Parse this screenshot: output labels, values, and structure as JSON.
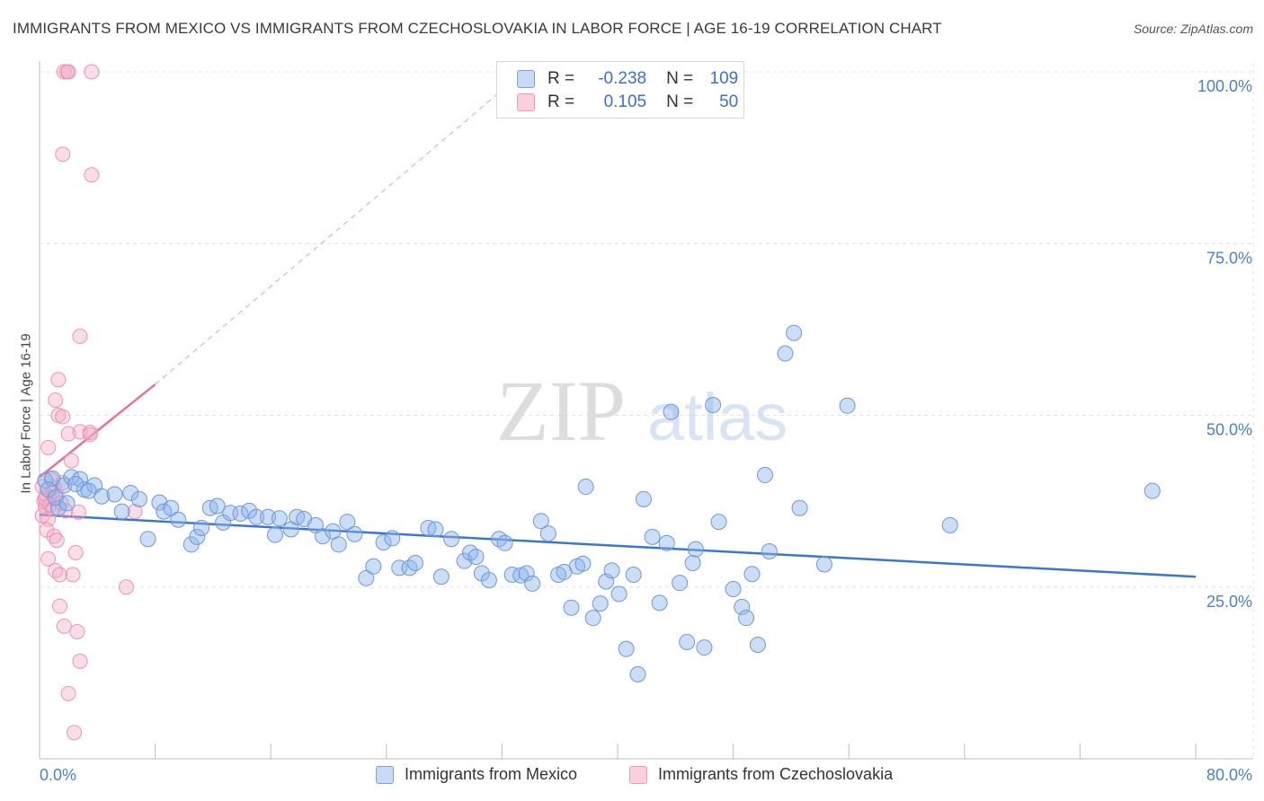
{
  "title": "IMMIGRANTS FROM MEXICO VS IMMIGRANTS FROM CZECHOSLOVAKIA IN LABOR FORCE | AGE 16-19 CORRELATION CHART",
  "source": "Source: ZipAtlas.com",
  "watermark": {
    "zip": "ZIP",
    "atlas": "atlas"
  },
  "legend": {
    "rows": [
      {
        "r_label": "R =",
        "r_value": "-0.238",
        "n_label": "N =",
        "n_value": "109",
        "color": "#8fb4ea"
      },
      {
        "r_label": "R =",
        "r_value": "0.105",
        "n_label": "N =",
        "n_value": "50",
        "color": "#f2a7c0"
      }
    ]
  },
  "bottom_legend": [
    "Immigrants from Mexico",
    "Immigrants from Czechoslovakia"
  ],
  "chart_data": {
    "type": "scatter",
    "title": "IMMIGRANTS FROM MEXICO VS IMMIGRANTS FROM CZECHOSLOVAKIA IN LABOR FORCE | AGE 16-19 CORRELATION CHART",
    "xlabel": "",
    "ylabel": "In Labor Force | Age 16-19",
    "xlim": [
      0,
      80
    ],
    "ylim": [
      0,
      100
    ],
    "x_tick_labels": [
      "0.0%",
      "80.0%"
    ],
    "y_tick_labels": [
      "25.0%",
      "50.0%",
      "75.0%",
      "100.0%"
    ],
    "y_ticks": [
      25,
      50,
      75,
      100
    ],
    "colors": {
      "mexico": "#8fb4ea",
      "mexico_line": "#3b76d0",
      "czech": "#f2a7c0",
      "czech_line": "#e8719a",
      "axis_text": "#4a7fd4"
    },
    "series": [
      {
        "name": "Immigrants from Mexico",
        "trend": {
          "x0": 0,
          "y0": 35.5,
          "x1": 80,
          "y1": 26.5
        },
        "points": [
          [
            0.4,
            40.5
          ],
          [
            0.9,
            40.8
          ],
          [
            1.3,
            36.5
          ],
          [
            1.7,
            39.8
          ],
          [
            2.2,
            41.0
          ],
          [
            2.8,
            40.7
          ],
          [
            3.1,
            39.2
          ],
          [
            3.8,
            39.8
          ],
          [
            4.3,
            38.2
          ],
          [
            5.2,
            38.5
          ],
          [
            5.7,
            36.0
          ],
          [
            6.3,
            38.7
          ],
          [
            6.9,
            37.8
          ],
          [
            7.5,
            32.0
          ],
          [
            8.3,
            37.3
          ],
          [
            8.6,
            36.0
          ],
          [
            9.1,
            36.5
          ],
          [
            9.6,
            34.8
          ],
          [
            10.5,
            31.2
          ],
          [
            10.9,
            32.3
          ],
          [
            11.2,
            33.6
          ],
          [
            11.8,
            36.5
          ],
          [
            12.3,
            36.8
          ],
          [
            12.7,
            34.4
          ],
          [
            13.2,
            35.8
          ],
          [
            13.9,
            35.7
          ],
          [
            14.5,
            36.1
          ],
          [
            15.0,
            35.2
          ],
          [
            15.8,
            35.2
          ],
          [
            16.3,
            32.6
          ],
          [
            16.6,
            35.0
          ],
          [
            17.4,
            33.4
          ],
          [
            17.8,
            35.2
          ],
          [
            18.3,
            34.9
          ],
          [
            19.1,
            34.0
          ],
          [
            19.6,
            32.4
          ],
          [
            20.3,
            33.1
          ],
          [
            20.7,
            31.2
          ],
          [
            21.3,
            34.5
          ],
          [
            21.8,
            32.7
          ],
          [
            22.6,
            26.3
          ],
          [
            23.1,
            28.0
          ],
          [
            23.8,
            31.5
          ],
          [
            24.4,
            32.1
          ],
          [
            24.9,
            27.8
          ],
          [
            25.6,
            27.8
          ],
          [
            26.0,
            28.5
          ],
          [
            26.9,
            33.6
          ],
          [
            27.4,
            33.4
          ],
          [
            27.8,
            26.5
          ],
          [
            28.5,
            32.0
          ],
          [
            29.4,
            28.8
          ],
          [
            29.8,
            30.0
          ],
          [
            30.2,
            29.4
          ],
          [
            30.6,
            27.0
          ],
          [
            31.1,
            26.0
          ],
          [
            31.8,
            32.0
          ],
          [
            32.2,
            31.4
          ],
          [
            32.7,
            26.8
          ],
          [
            33.3,
            26.7
          ],
          [
            33.7,
            27.0
          ],
          [
            34.1,
            25.5
          ],
          [
            34.7,
            34.6
          ],
          [
            35.2,
            32.8
          ],
          [
            35.9,
            26.8
          ],
          [
            36.3,
            27.2
          ],
          [
            36.8,
            22.0
          ],
          [
            37.2,
            28.0
          ],
          [
            37.6,
            28.4
          ],
          [
            37.8,
            39.6
          ],
          [
            38.3,
            20.5
          ],
          [
            38.8,
            22.6
          ],
          [
            39.2,
            25.8
          ],
          [
            39.6,
            27.4
          ],
          [
            40.1,
            24.0
          ],
          [
            40.6,
            16.0
          ],
          [
            41.1,
            26.8
          ],
          [
            41.4,
            12.3
          ],
          [
            41.8,
            37.8
          ],
          [
            42.4,
            32.3
          ],
          [
            42.9,
            22.7
          ],
          [
            43.4,
            31.4
          ],
          [
            43.7,
            50.5
          ],
          [
            44.3,
            25.6
          ],
          [
            44.8,
            17.0
          ],
          [
            45.2,
            28.5
          ],
          [
            45.4,
            30.5
          ],
          [
            46.0,
            16.2
          ],
          [
            46.6,
            51.5
          ],
          [
            47.0,
            34.5
          ],
          [
            48.0,
            24.7
          ],
          [
            48.6,
            22.1
          ],
          [
            48.9,
            20.5
          ],
          [
            49.3,
            26.9
          ],
          [
            49.7,
            16.6
          ],
          [
            50.2,
            41.3
          ],
          [
            50.5,
            30.2
          ],
          [
            51.6,
            59.0
          ],
          [
            52.2,
            62.0
          ],
          [
            52.6,
            36.5
          ],
          [
            54.3,
            28.3
          ],
          [
            55.9,
            51.4
          ],
          [
            63.0,
            34.0
          ],
          [
            77.0,
            39.0
          ],
          [
            0.6,
            39.2
          ],
          [
            1.1,
            38.0
          ],
          [
            1.9,
            37.2
          ],
          [
            2.5,
            40.0
          ],
          [
            3.4,
            39.0
          ]
        ]
      },
      {
        "name": "Immigrants from Czechoslovakia",
        "trend": {
          "x0": 0,
          "y0": 41.0,
          "x1": 8,
          "y1": 54.5,
          "dashed_to": [
            33.5,
            100
          ]
        },
        "points": [
          [
            1.7,
            100
          ],
          [
            2.0,
            100
          ],
          [
            1.9,
            100
          ],
          [
            3.6,
            100
          ],
          [
            1.6,
            88
          ],
          [
            3.6,
            85
          ],
          [
            2.8,
            61.5
          ],
          [
            1.3,
            55.2
          ],
          [
            1.1,
            52.2
          ],
          [
            1.3,
            50.0
          ],
          [
            1.6,
            49.8
          ],
          [
            2.0,
            47.3
          ],
          [
            2.8,
            47.6
          ],
          [
            3.5,
            47.5
          ],
          [
            3.5,
            47.2
          ],
          [
            0.6,
            45.3
          ],
          [
            2.2,
            43.4
          ],
          [
            0.8,
            40.7
          ],
          [
            1.0,
            39.5
          ],
          [
            0.5,
            38.3
          ],
          [
            1.2,
            38.3
          ],
          [
            0.3,
            37.6
          ],
          [
            0.7,
            37.0
          ],
          [
            1.5,
            37.2
          ],
          [
            0.4,
            36.7
          ],
          [
            0.9,
            36.3
          ],
          [
            2.7,
            35.9
          ],
          [
            0.2,
            35.4
          ],
          [
            0.6,
            34.9
          ],
          [
            0.5,
            33.3
          ],
          [
            1.0,
            32.4
          ],
          [
            1.2,
            31.8
          ],
          [
            2.5,
            30.0
          ],
          [
            0.6,
            29.1
          ],
          [
            1.1,
            27.4
          ],
          [
            1.4,
            26.8
          ],
          [
            2.3,
            26.8
          ],
          [
            6.0,
            25.0
          ],
          [
            1.4,
            22.2
          ],
          [
            1.7,
            19.3
          ],
          [
            2.6,
            18.5
          ],
          [
            2.8,
            14.2
          ],
          [
            2.0,
            9.5
          ],
          [
            2.4,
            3.8
          ],
          [
            6.6,
            36.0
          ],
          [
            0.4,
            37.9
          ],
          [
            0.9,
            38.9
          ],
          [
            1.6,
            40.2
          ],
          [
            0.2,
            39.6
          ],
          [
            1.8,
            36.1
          ]
        ]
      }
    ]
  }
}
